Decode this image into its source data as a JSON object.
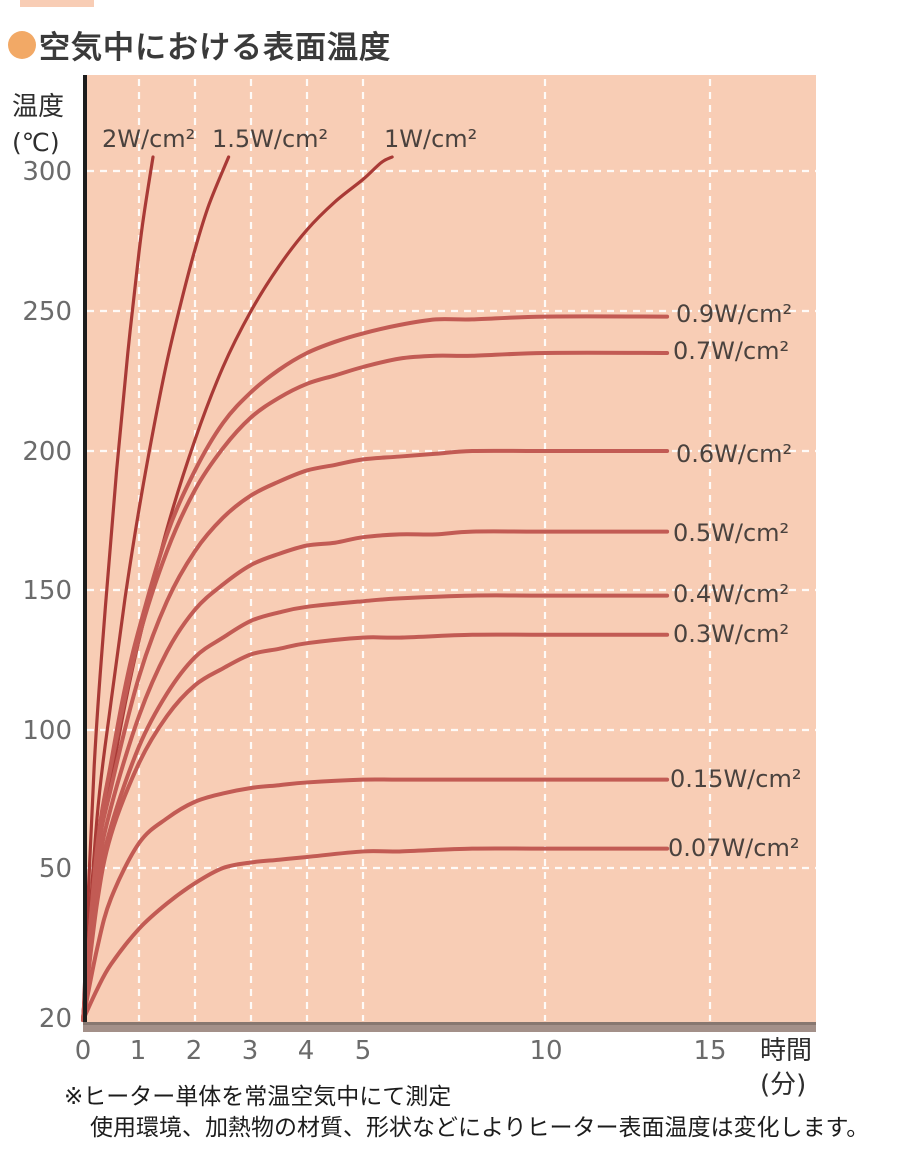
{
  "title": {
    "text": "空気中における表面温度"
  },
  "colors": {
    "plot_bg": "#f8cdb5",
    "grid": "#ffffff",
    "bullet": "#f2a966",
    "axis_line": "#1d1d1d",
    "baseline_bar": "#a39089",
    "baseline_bar_edge": "#877770",
    "steep_curve": "#a93a36",
    "plateau_curve": "#c25b54"
  },
  "y_axis": {
    "unit_line1": "温度",
    "unit_line2": "(℃)"
  },
  "x_axis": {
    "unit_line1": "時間",
    "unit_line2": "(分)"
  },
  "footnotes": {
    "line1": "※ヒーター単体を常温空気中にて測定",
    "line2": "使用環境、加熱物の材質、形状などによりヒーター表面温度は変化します。"
  },
  "chart_data": {
    "type": "line",
    "title": "空気中における表面温度",
    "xlabel": "時間(分)",
    "ylabel": "温度(℃)",
    "x_ticks": [
      0,
      1,
      2,
      3,
      4,
      5,
      10,
      15
    ],
    "y_ticks": [
      300,
      250,
      200,
      150,
      100,
      50,
      20
    ],
    "x_gridlines": [
      1,
      2,
      3,
      4,
      5,
      10,
      15
    ],
    "y_gridlines": [
      50,
      100,
      150,
      200,
      250,
      300
    ],
    "axis_note": "x axis compressed after 5 min; y axis compressed below 50C; curves start at ambient 20C",
    "legend_position": "inline-labels",
    "series": [
      {
        "name": "2W/cm²",
        "color": "#a93a36",
        "width": 3.2,
        "points": [
          [
            0,
            20
          ],
          [
            0.2,
            87
          ],
          [
            0.4,
            144
          ],
          [
            0.6,
            193
          ],
          [
            0.8,
            235
          ],
          [
            1.0,
            271
          ],
          [
            1.1,
            286
          ],
          [
            1.25,
            305
          ]
        ]
      },
      {
        "name": "1.5W/cm²",
        "color": "#a93a36",
        "width": 3.2,
        "points": [
          [
            0,
            20
          ],
          [
            0.25,
            68
          ],
          [
            0.5,
            110
          ],
          [
            0.75,
            147
          ],
          [
            1,
            179
          ],
          [
            1.25,
            207
          ],
          [
            1.5,
            232
          ],
          [
            1.75,
            253
          ],
          [
            2,
            272
          ],
          [
            2.25,
            288
          ],
          [
            2.6,
            305
          ]
        ]
      },
      {
        "name": "1W/cm²",
        "color": "#a93a36",
        "width": 3.2,
        "points": [
          [
            0,
            20
          ],
          [
            0.25,
            53
          ],
          [
            0.5,
            82
          ],
          [
            0.75,
            109
          ],
          [
            1,
            132
          ],
          [
            1.5,
            172
          ],
          [
            2,
            204
          ],
          [
            2.5,
            230
          ],
          [
            3,
            250
          ],
          [
            3.5,
            266
          ],
          [
            4,
            279
          ],
          [
            4.5,
            289
          ],
          [
            5,
            297
          ],
          [
            5.5,
            303
          ],
          [
            5.8,
            305
          ]
        ]
      },
      {
        "name": "0.9W/cm²",
        "color": "#c25b54",
        "width": 4,
        "points": [
          [
            0,
            20
          ],
          [
            0.25,
            57
          ],
          [
            0.5,
            88
          ],
          [
            0.75,
            115
          ],
          [
            1,
            136
          ],
          [
            1.5,
            170
          ],
          [
            2,
            193
          ],
          [
            2.5,
            210
          ],
          [
            3,
            221
          ],
          [
            3.5,
            229
          ],
          [
            4,
            235
          ],
          [
            4.5,
            239
          ],
          [
            5,
            242
          ],
          [
            6,
            245
          ],
          [
            7,
            247
          ],
          [
            8,
            247
          ],
          [
            10,
            248
          ],
          [
            13.7,
            248
          ]
        ]
      },
      {
        "name": "0.7W/cm²",
        "color": "#c25b54",
        "width": 4,
        "points": [
          [
            0,
            20
          ],
          [
            0.25,
            56
          ],
          [
            0.5,
            87
          ],
          [
            1,
            133
          ],
          [
            1.5,
            164
          ],
          [
            2,
            186
          ],
          [
            2.5,
            201
          ],
          [
            3,
            212
          ],
          [
            3.5,
            219
          ],
          [
            4,
            224
          ],
          [
            4.5,
            227
          ],
          [
            5,
            230
          ],
          [
            6,
            233
          ],
          [
            7,
            234
          ],
          [
            8,
            234
          ],
          [
            10,
            235
          ],
          [
            13.7,
            235
          ]
        ]
      },
      {
        "name": "0.6W/cm²",
        "color": "#c25b54",
        "width": 4,
        "points": [
          [
            0,
            20
          ],
          [
            0.25,
            53
          ],
          [
            0.5,
            79
          ],
          [
            1,
            119
          ],
          [
            1.5,
            146
          ],
          [
            2,
            164
          ],
          [
            2.5,
            176
          ],
          [
            3,
            184
          ],
          [
            3.5,
            189
          ],
          [
            4,
            193
          ],
          [
            4.5,
            195
          ],
          [
            5,
            197
          ],
          [
            6,
            198
          ],
          [
            7,
            199
          ],
          [
            8,
            200
          ],
          [
            10,
            200
          ],
          [
            13.7,
            200
          ]
        ]
      },
      {
        "name": "0.5W/cm²",
        "color": "#c25b54",
        "width": 4,
        "points": [
          [
            0,
            20
          ],
          [
            0.25,
            48
          ],
          [
            0.5,
            72
          ],
          [
            1,
            105
          ],
          [
            1.5,
            128
          ],
          [
            2,
            143
          ],
          [
            2.5,
            152
          ],
          [
            3,
            159
          ],
          [
            3.5,
            163
          ],
          [
            4,
            166
          ],
          [
            4.5,
            167
          ],
          [
            5,
            169
          ],
          [
            6,
            170
          ],
          [
            7,
            170
          ],
          [
            8,
            171
          ],
          [
            10,
            171
          ],
          [
            13.7,
            171
          ]
        ]
      },
      {
        "name": "0.4W/cm²",
        "color": "#c25b54",
        "width": 4,
        "points": [
          [
            0,
            20
          ],
          [
            0.25,
            45
          ],
          [
            0.5,
            65
          ],
          [
            1,
            94
          ],
          [
            1.5,
            113
          ],
          [
            2,
            126
          ],
          [
            2.5,
            133
          ],
          [
            3,
            139
          ],
          [
            3.5,
            142
          ],
          [
            4,
            144
          ],
          [
            5,
            146
          ],
          [
            6,
            147
          ],
          [
            8,
            148
          ],
          [
            10,
            148
          ],
          [
            13.7,
            148
          ]
        ]
      },
      {
        "name": "0.3W/cm²",
        "color": "#c25b54",
        "width": 4,
        "points": [
          [
            0,
            20
          ],
          [
            0.25,
            43
          ],
          [
            0.5,
            62
          ],
          [
            1,
            88
          ],
          [
            1.5,
            105
          ],
          [
            2,
            116
          ],
          [
            2.5,
            122
          ],
          [
            3,
            127
          ],
          [
            3.5,
            129
          ],
          [
            4,
            131
          ],
          [
            5,
            133
          ],
          [
            6,
            133
          ],
          [
            8,
            134
          ],
          [
            10,
            134
          ],
          [
            13.7,
            134
          ]
        ]
      },
      {
        "name": "0.15W/cm²",
        "color": "#c25b54",
        "width": 4,
        "points": [
          [
            0,
            20
          ],
          [
            0.25,
            34
          ],
          [
            0.5,
            44
          ],
          [
            1,
            59
          ],
          [
            1.5,
            68
          ],
          [
            2,
            74
          ],
          [
            2.5,
            77
          ],
          [
            3,
            79
          ],
          [
            3.5,
            80
          ],
          [
            4,
            81
          ],
          [
            5,
            82
          ],
          [
            6,
            82
          ],
          [
            8,
            82
          ],
          [
            10,
            82
          ],
          [
            13.7,
            82
          ]
        ]
      },
      {
        "name": "0.07W/cm²",
        "color": "#c25b54",
        "width": 4,
        "points": [
          [
            0,
            20
          ],
          [
            0.25,
            26
          ],
          [
            0.5,
            31
          ],
          [
            1,
            38
          ],
          [
            1.5,
            43
          ],
          [
            2,
            47
          ],
          [
            2.5,
            50
          ],
          [
            3,
            52
          ],
          [
            3.5,
            53
          ],
          [
            4,
            54
          ],
          [
            5,
            56
          ],
          [
            6,
            56
          ],
          [
            8,
            57
          ],
          [
            10,
            57
          ],
          [
            13.7,
            57
          ]
        ]
      }
    ]
  }
}
